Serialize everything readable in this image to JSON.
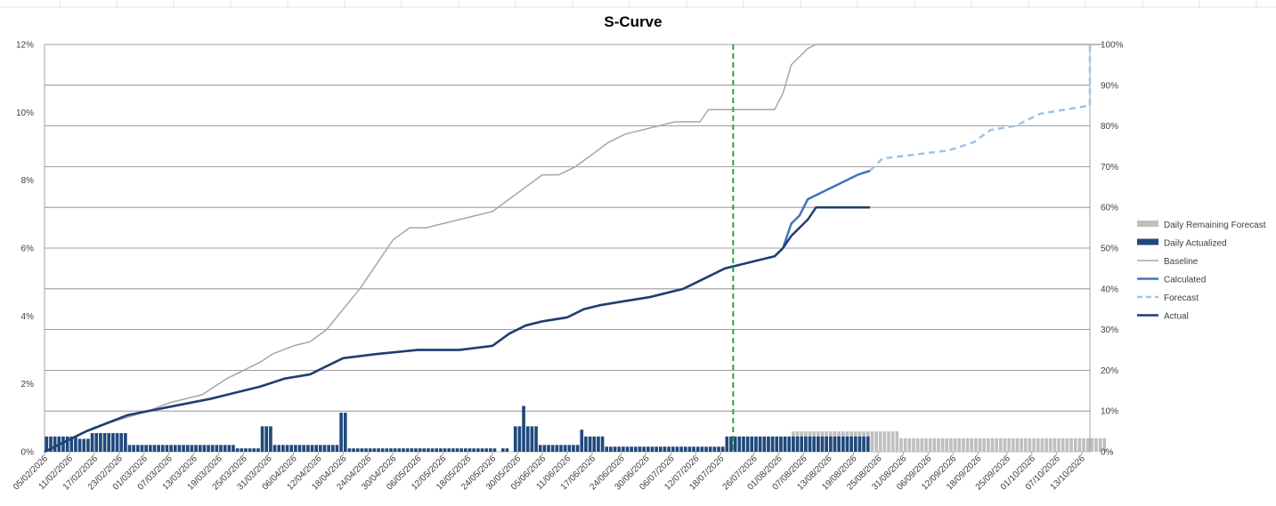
{
  "chart_data": {
    "type": "bar",
    "title": "S-Curve",
    "x_start": "2026-02-05",
    "x_end": "2026-10-15",
    "today": "2026-07-21",
    "x_ticks": [
      "05/02/2026",
      "11/02/2026",
      "17/02/2026",
      "23/02/2026",
      "01/03/2026",
      "07/03/2026",
      "13/03/2026",
      "19/03/2026",
      "25/03/2026",
      "31/03/2026",
      "06/04/2026",
      "12/04/2026",
      "18/04/2026",
      "24/04/2026",
      "30/04/2026",
      "06/05/2026",
      "12/05/2026",
      "18/05/2026",
      "24/05/2026",
      "30/05/2026",
      "05/06/2026",
      "11/06/2026",
      "17/06/2026",
      "24/06/2026",
      "30/06/2026",
      "06/07/2026",
      "12/07/2026",
      "18/07/2026",
      "26/07/2026",
      "01/08/2026",
      "07/08/2026",
      "13/08/2026",
      "19/08/2026",
      "25/08/2026",
      "31/08/2026",
      "06/09/2026",
      "12/09/2026",
      "18/09/2026",
      "25/09/2026",
      "01/10/2026",
      "07/10/2026",
      "13/10/2026"
    ],
    "y_left": {
      "ticks": [
        "0%",
        "2%",
        "4%",
        "6%",
        "8%",
        "10%",
        "12%"
      ],
      "ylim": [
        0,
        12
      ]
    },
    "y_right": {
      "ticks": [
        "0%",
        "10%",
        "20%",
        "30%",
        "40%",
        "50%",
        "60%",
        "70%",
        "80%",
        "90%",
        "100%"
      ],
      "ylim": [
        0,
        100
      ]
    },
    "legend_position": "right",
    "series": [
      {
        "name": "Daily Remaining Forecast",
        "kind": "bar",
        "axis": "left",
        "color": "#bfbfbf",
        "values": [
          [
            171,
            0.4
          ],
          [
            172,
            0.4
          ],
          [
            173,
            0.4
          ],
          [
            174,
            0.4
          ],
          [
            175,
            0.4
          ],
          [
            176,
            0.4
          ],
          [
            177,
            0.4
          ],
          [
            178,
            0.4
          ],
          [
            179,
            0.4
          ],
          [
            180,
            0.6
          ],
          [
            181,
            0.6
          ],
          [
            182,
            0.6
          ],
          [
            183,
            0.6
          ],
          [
            184,
            0.6
          ],
          [
            185,
            0.6
          ],
          [
            186,
            0.6
          ],
          [
            187,
            0.6
          ],
          [
            188,
            0.6
          ],
          [
            189,
            0.6
          ],
          [
            190,
            0.6
          ],
          [
            191,
            0.6
          ],
          [
            192,
            0.6
          ],
          [
            193,
            0.6
          ],
          [
            194,
            0.6
          ],
          [
            195,
            0.6
          ],
          [
            196,
            0.6
          ],
          [
            197,
            0.6
          ],
          [
            198,
            0.6
          ],
          [
            199,
            0.6
          ],
          [
            200,
            0.6
          ],
          [
            201,
            0.6
          ],
          [
            202,
            0.6
          ],
          [
            203,
            0.6
          ],
          [
            204,
            0.6
          ],
          [
            205,
            0.6
          ],
          [
            206,
            0.4
          ],
          [
            207,
            0.4
          ],
          [
            208,
            0.4
          ],
          [
            209,
            0.4
          ],
          [
            210,
            0.4
          ],
          [
            211,
            0.4
          ],
          [
            212,
            0.4
          ],
          [
            213,
            0.4
          ],
          [
            214,
            0.4
          ],
          [
            215,
            0.4
          ],
          [
            216,
            0.4
          ],
          [
            217,
            0.4
          ],
          [
            218,
            0.4
          ],
          [
            219,
            0.4
          ],
          [
            220,
            0.4
          ],
          [
            221,
            0.4
          ],
          [
            222,
            0.4
          ],
          [
            223,
            0.4
          ],
          [
            224,
            0.4
          ],
          [
            225,
            0.4
          ],
          [
            226,
            0.4
          ],
          [
            227,
            0.4
          ],
          [
            228,
            0.4
          ],
          [
            229,
            0.4
          ],
          [
            230,
            0.4
          ],
          [
            231,
            0.4
          ],
          [
            232,
            0.4
          ],
          [
            233,
            0.4
          ],
          [
            234,
            0.4
          ],
          [
            235,
            0.4
          ],
          [
            236,
            0.4
          ],
          [
            237,
            0.4
          ],
          [
            238,
            0.4
          ],
          [
            239,
            0.4
          ],
          [
            240,
            0.4
          ],
          [
            241,
            0.4
          ],
          [
            242,
            0.4
          ],
          [
            243,
            0.4
          ],
          [
            244,
            0.4
          ],
          [
            245,
            0.4
          ],
          [
            246,
            0.4
          ],
          [
            247,
            0.4
          ],
          [
            248,
            0.4
          ],
          [
            249,
            0.4
          ],
          [
            250,
            0.4
          ],
          [
            251,
            0.4
          ],
          [
            252,
            0.4
          ],
          [
            253,
            0.4
          ],
          [
            254,
            0.4
          ],
          [
            255,
            0.4
          ]
        ]
      },
      {
        "name": "Daily Actualized",
        "kind": "bar",
        "axis": "left",
        "color": "#1f497d",
        "values": [
          [
            0,
            0.45
          ],
          [
            1,
            0.45
          ],
          [
            2,
            0.45
          ],
          [
            3,
            0.45
          ],
          [
            4,
            0.45
          ],
          [
            5,
            0.45
          ],
          [
            6,
            0.45
          ],
          [
            7,
            0.45
          ],
          [
            8,
            0.38
          ],
          [
            9,
            0.38
          ],
          [
            10,
            0.38
          ],
          [
            11,
            0.55
          ],
          [
            12,
            0.55
          ],
          [
            13,
            0.55
          ],
          [
            14,
            0.55
          ],
          [
            15,
            0.55
          ],
          [
            16,
            0.55
          ],
          [
            17,
            0.55
          ],
          [
            18,
            0.55
          ],
          [
            19,
            0.55
          ],
          [
            20,
            0.2
          ],
          [
            21,
            0.2
          ],
          [
            22,
            0.2
          ],
          [
            23,
            0.2
          ],
          [
            24,
            0.2
          ],
          [
            25,
            0.2
          ],
          [
            26,
            0.2
          ],
          [
            27,
            0.2
          ],
          [
            28,
            0.2
          ],
          [
            29,
            0.2
          ],
          [
            30,
            0.2
          ],
          [
            31,
            0.2
          ],
          [
            32,
            0.2
          ],
          [
            33,
            0.2
          ],
          [
            34,
            0.2
          ],
          [
            35,
            0.2
          ],
          [
            36,
            0.2
          ],
          [
            37,
            0.2
          ],
          [
            38,
            0.2
          ],
          [
            39,
            0.2
          ],
          [
            40,
            0.2
          ],
          [
            41,
            0.2
          ],
          [
            42,
            0.2
          ],
          [
            43,
            0.2
          ],
          [
            44,
            0.2
          ],
          [
            45,
            0.2
          ],
          [
            46,
            0.1
          ],
          [
            47,
            0.1
          ],
          [
            48,
            0.1
          ],
          [
            49,
            0.1
          ],
          [
            50,
            0.1
          ],
          [
            51,
            0.1
          ],
          [
            52,
            0.75
          ],
          [
            53,
            0.75
          ],
          [
            54,
            0.75
          ],
          [
            55,
            0.2
          ],
          [
            56,
            0.2
          ],
          [
            57,
            0.2
          ],
          [
            58,
            0.2
          ],
          [
            59,
            0.2
          ],
          [
            60,
            0.2
          ],
          [
            61,
            0.2
          ],
          [
            62,
            0.2
          ],
          [
            63,
            0.2
          ],
          [
            64,
            0.2
          ],
          [
            65,
            0.2
          ],
          [
            66,
            0.2
          ],
          [
            67,
            0.2
          ],
          [
            68,
            0.2
          ],
          [
            69,
            0.2
          ],
          [
            70,
            0.2
          ],
          [
            71,
            1.15
          ],
          [
            72,
            1.15
          ],
          [
            73,
            0.1
          ],
          [
            74,
            0.1
          ],
          [
            75,
            0.1
          ],
          [
            76,
            0.1
          ],
          [
            77,
            0.1
          ],
          [
            78,
            0.1
          ],
          [
            79,
            0.1
          ],
          [
            80,
            0.1
          ],
          [
            81,
            0.1
          ],
          [
            82,
            0.1
          ],
          [
            83,
            0.1
          ],
          [
            84,
            0.1
          ],
          [
            85,
            0.1
          ],
          [
            86,
            0.1
          ],
          [
            87,
            0.1
          ],
          [
            88,
            0.1
          ],
          [
            89,
            0.1
          ],
          [
            90,
            0.1
          ],
          [
            91,
            0.1
          ],
          [
            92,
            0.1
          ],
          [
            93,
            0.1
          ],
          [
            94,
            0.1
          ],
          [
            95,
            0.1
          ],
          [
            96,
            0.1
          ],
          [
            97,
            0.1
          ],
          [
            98,
            0.1
          ],
          [
            99,
            0.1
          ],
          [
            100,
            0.1
          ],
          [
            101,
            0.1
          ],
          [
            102,
            0.1
          ],
          [
            103,
            0.1
          ],
          [
            104,
            0.1
          ],
          [
            105,
            0.1
          ],
          [
            106,
            0.1
          ],
          [
            107,
            0.1
          ],
          [
            108,
            0.1
          ],
          [
            110,
            0.1
          ],
          [
            111,
            0.1
          ],
          [
            113,
            0.75
          ],
          [
            114,
            0.75
          ],
          [
            115,
            1.35
          ],
          [
            116,
            0.75
          ],
          [
            117,
            0.75
          ],
          [
            118,
            0.75
          ],
          [
            119,
            0.2
          ],
          [
            120,
            0.2
          ],
          [
            121,
            0.2
          ],
          [
            122,
            0.2
          ],
          [
            123,
            0.2
          ],
          [
            124,
            0.2
          ],
          [
            125,
            0.2
          ],
          [
            126,
            0.2
          ],
          [
            127,
            0.2
          ],
          [
            128,
            0.2
          ],
          [
            129,
            0.65
          ],
          [
            130,
            0.45
          ],
          [
            131,
            0.45
          ],
          [
            132,
            0.45
          ],
          [
            133,
            0.45
          ],
          [
            134,
            0.45
          ],
          [
            135,
            0.15
          ],
          [
            136,
            0.15
          ],
          [
            137,
            0.15
          ],
          [
            138,
            0.15
          ],
          [
            139,
            0.15
          ],
          [
            140,
            0.15
          ],
          [
            141,
            0.15
          ],
          [
            142,
            0.15
          ],
          [
            143,
            0.15
          ],
          [
            144,
            0.15
          ],
          [
            145,
            0.15
          ],
          [
            146,
            0.15
          ],
          [
            147,
            0.15
          ],
          [
            148,
            0.15
          ],
          [
            149,
            0.15
          ],
          [
            150,
            0.15
          ],
          [
            151,
            0.15
          ],
          [
            152,
            0.15
          ],
          [
            153,
            0.15
          ],
          [
            154,
            0.15
          ],
          [
            155,
            0.15
          ],
          [
            156,
            0.15
          ],
          [
            157,
            0.15
          ],
          [
            158,
            0.15
          ],
          [
            159,
            0.15
          ],
          [
            160,
            0.15
          ],
          [
            161,
            0.15
          ],
          [
            162,
            0.15
          ],
          [
            163,
            0.15
          ],
          [
            164,
            0.45
          ],
          [
            165,
            0.45
          ],
          [
            166,
            0.45
          ],
          [
            167,
            0.45
          ],
          [
            168,
            0.45
          ],
          [
            169,
            0.45
          ],
          [
            170,
            0.45
          ],
          [
            171,
            0.45
          ],
          [
            172,
            0.45
          ],
          [
            173,
            0.45
          ],
          [
            174,
            0.45
          ],
          [
            175,
            0.45
          ],
          [
            176,
            0.45
          ],
          [
            177,
            0.45
          ],
          [
            178,
            0.45
          ],
          [
            179,
            0.45
          ],
          [
            180,
            0.45
          ],
          [
            181,
            0.45
          ],
          [
            182,
            0.45
          ],
          [
            183,
            0.45
          ],
          [
            184,
            0.45
          ],
          [
            185,
            0.45
          ],
          [
            186,
            0.45
          ],
          [
            187,
            0.45
          ],
          [
            188,
            0.45
          ],
          [
            189,
            0.45
          ],
          [
            190,
            0.45
          ],
          [
            191,
            0.45
          ],
          [
            192,
            0.45
          ],
          [
            193,
            0.45
          ],
          [
            194,
            0.45
          ],
          [
            195,
            0.45
          ],
          [
            196,
            0.45
          ],
          [
            197,
            0.45
          ],
          [
            198,
            0.45
          ]
        ]
      }
    ]
  }
}
